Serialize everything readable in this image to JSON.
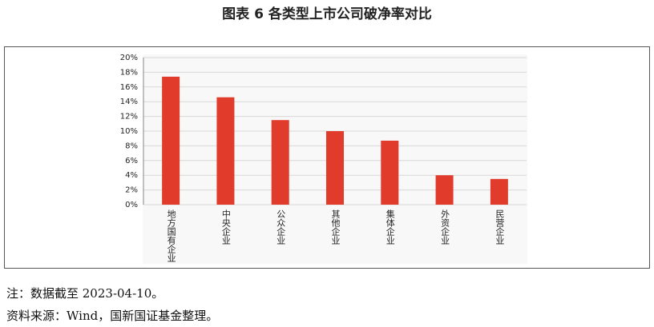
{
  "chart_data": {
    "type": "bar",
    "title": "图表 6 各类型上市公司破净率对比",
    "categories": [
      "地方国有企业",
      "中央企业",
      "公众企业",
      "其他企业",
      "集体企业",
      "外资企业",
      "民营企业"
    ],
    "values": [
      17.4,
      14.6,
      11.5,
      10.0,
      8.7,
      4.0,
      3.5
    ],
    "color": "#e03b2b",
    "ylim": [
      0,
      20
    ],
    "yticks": [
      {
        "value": 0,
        "label": "0%"
      },
      {
        "value": 2,
        "label": "2%"
      },
      {
        "value": 4,
        "label": "4%"
      },
      {
        "value": 6,
        "label": "6%"
      },
      {
        "value": 8,
        "label": "8%"
      },
      {
        "value": 10,
        "label": "10%"
      },
      {
        "value": 12,
        "label": "12%"
      },
      {
        "value": 14,
        "label": "14%"
      },
      {
        "value": 16,
        "label": "16%"
      },
      {
        "value": 18,
        "label": "18%"
      },
      {
        "value": 20,
        "label": "20%"
      }
    ],
    "grid": true
  },
  "notes": [
    "注：数据截至 2023-04-10。",
    "资料来源：Wind，国新国证基金整理。"
  ]
}
